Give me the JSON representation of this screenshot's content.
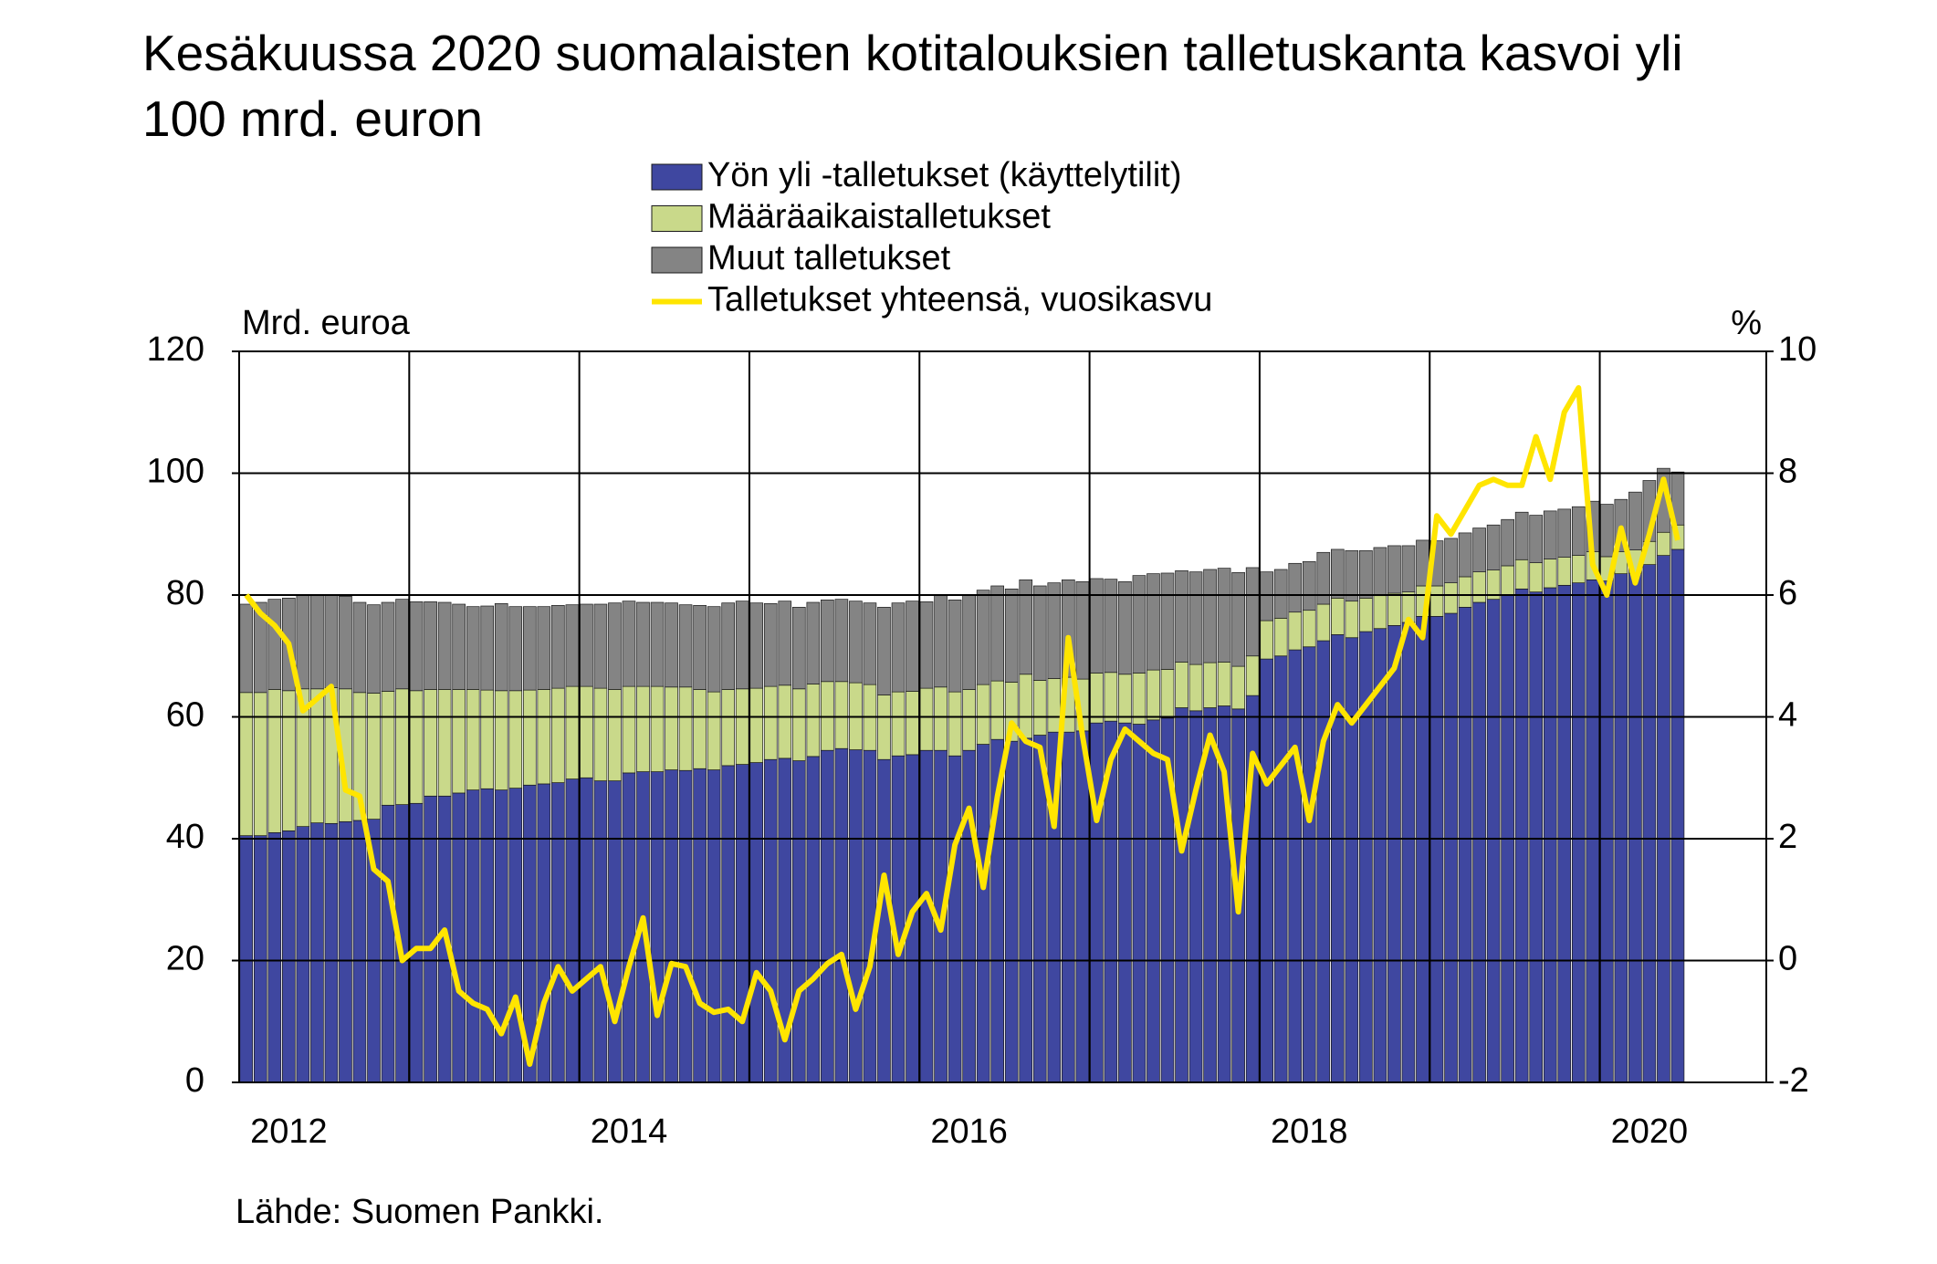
{
  "chart_data": {
    "type": "stacked-bar-line",
    "title": "Kesäkuussa 2020 suomalaisten kotitalouksien talletuskanta kasvoi yli 100 mrd. euron",
    "y_label": "Mrd. euroa",
    "y2_label": "%",
    "source": "Lähde: Suomen Pankki.",
    "categories": [
      null,
      null,
      null,
      "2012",
      null,
      null,
      null,
      null,
      null,
      null,
      null,
      null,
      null,
      null,
      null,
      null,
      null,
      null,
      null,
      null,
      null,
      null,
      null,
      null,
      null,
      null,
      null,
      "2014",
      null,
      null,
      null,
      null,
      null,
      null,
      null,
      null,
      null,
      null,
      null,
      null,
      null,
      null,
      null,
      null,
      null,
      null,
      null,
      null,
      null,
      null,
      null,
      "2016",
      null,
      null,
      null,
      null,
      null,
      null,
      null,
      null,
      null,
      null,
      null,
      null,
      null,
      null,
      null,
      null,
      null,
      null,
      null,
      null,
      null,
      null,
      null,
      "2018",
      null,
      null,
      null,
      null,
      null,
      null,
      null,
      null,
      null,
      null,
      null,
      null,
      null,
      null,
      null,
      null,
      null,
      null,
      null,
      null,
      null,
      null,
      null,
      "2020",
      null,
      null
    ],
    "ylim": [
      0,
      120
    ],
    "yticks": [
      0,
      20,
      40,
      60,
      80,
      100,
      120
    ],
    "y2lim": [
      -2,
      10
    ],
    "y2ticks": [
      -2,
      0,
      2,
      4,
      6,
      8,
      10
    ],
    "grid": true,
    "series": [
      {
        "name": "Yön yli -talletukset (käyttelytilit)",
        "color": "#3f47a0",
        "values": [
          40.5,
          40.5,
          41,
          41.3,
          42,
          42.6,
          42.5,
          42.8,
          43,
          43.2,
          45.5,
          45.6,
          45.8,
          47,
          47,
          47.5,
          48,
          48.2,
          48,
          48.3,
          48.8,
          49,
          49.2,
          49.8,
          50,
          49.5,
          49.5,
          50.8,
          51,
          51,
          51.3,
          51.2,
          51.5,
          51.3,
          52,
          52.2,
          52.5,
          53,
          53.2,
          52.8,
          53.5,
          54.5,
          54.8,
          54.6,
          54.5,
          53,
          53.6,
          53.8,
          54.5,
          54.5,
          53.6,
          54.5,
          55.5,
          56.3,
          56,
          56.5,
          57,
          57.5,
          57.5,
          57.7,
          59,
          59.3,
          59,
          58.8,
          59.5,
          59.8,
          61.5,
          61,
          61.5,
          61.8,
          61.3,
          63.5,
          69.5,
          70,
          71,
          71.5,
          72.5,
          73.5,
          73,
          74,
          74.5,
          75,
          75.5,
          76.5,
          76.5,
          77,
          78,
          78.8,
          79.3,
          80,
          81,
          80.5,
          81.2,
          81.6,
          82,
          82.5,
          82.3,
          83.5,
          83.6,
          85,
          86.5,
          87.5
        ]
      },
      {
        "name": "Määräaikaistalletukset",
        "color": "#c9d98a",
        "values": [
          23.5,
          23.5,
          23.5,
          23,
          22.6,
          22,
          22.3,
          21.8,
          21,
          20.7,
          18.7,
          19,
          18.5,
          17.5,
          17.5,
          17,
          16.5,
          16.2,
          16.3,
          16,
          15.6,
          15.5,
          15.5,
          15.2,
          15,
          15.2,
          15,
          14.2,
          14,
          14,
          13.6,
          13.7,
          13,
          12.8,
          12.5,
          12.4,
          12.2,
          12,
          12,
          11.8,
          11.9,
          11.3,
          11,
          11,
          10.8,
          10.6,
          10.5,
          10.4,
          10.2,
          10.4,
          10.5,
          10,
          9.8,
          9.6,
          9.7,
          10.5,
          9,
          8.8,
          9,
          8.5,
          8.2,
          8,
          8,
          8.4,
          8.2,
          8,
          7.5,
          7.6,
          7.4,
          7.2,
          7,
          6.5,
          6.3,
          6.2,
          6.2,
          6,
          6,
          6,
          6,
          5.5,
          5.4,
          5.3,
          5,
          5,
          5,
          5,
          5,
          5,
          4.8,
          4.8,
          4.8,
          4.8,
          4.7,
          4.6,
          4.5,
          4.6,
          4,
          3.6,
          3.8,
          3.8,
          3.8,
          4
        ]
      },
      {
        "name": "Muut talletukset",
        "color": "#848484",
        "values": [
          14.5,
          14.8,
          14.8,
          15.2,
          15.5,
          15.3,
          15.2,
          15.2,
          14.8,
          14.5,
          14.6,
          14.7,
          14.6,
          14.4,
          14.3,
          14,
          13.6,
          13.8,
          14.3,
          13.8,
          13.7,
          13.6,
          13.6,
          13.4,
          13.5,
          13.8,
          14.2,
          14,
          13.8,
          13.8,
          13.8,
          13.5,
          13.8,
          14,
          14.2,
          14.4,
          14,
          13.6,
          13.8,
          13.4,
          13.4,
          13.4,
          13.5,
          13.4,
          13.4,
          14.4,
          14.6,
          14.8,
          14.2,
          15,
          15.1,
          15.5,
          15.5,
          15.6,
          15.3,
          15.5,
          15.5,
          15.7,
          16,
          16,
          15.5,
          15.3,
          15.2,
          16,
          15.8,
          15.8,
          15,
          15.2,
          15.3,
          15.4,
          15.4,
          14.5,
          8,
          8,
          8,
          8,
          8.5,
          8,
          8.3,
          7.8,
          7.9,
          7.8,
          7.6,
          7.5,
          7.4,
          7.3,
          7.2,
          7.2,
          7.4,
          7.6,
          7.8,
          7.8,
          7.9,
          7.9,
          8,
          8.3,
          8.6,
          8.6,
          9.5,
          10,
          10.5,
          8.7
        ]
      },
      {
        "name": "Talletukset yhteensä, vuosikasvu",
        "color": "#ffe500",
        "axis": "y2",
        "values": [
          6.0,
          5.7,
          5.5,
          5.2,
          4.1,
          4.3,
          4.5,
          2.8,
          2.7,
          1.5,
          1.3,
          0.0,
          0.2,
          0.2,
          0.5,
          -0.5,
          -0.7,
          -0.8,
          -1.2,
          -0.6,
          -1.7,
          -0.7,
          -0.1,
          -0.5,
          -0.3,
          -0.1,
          -1.0,
          -0.1,
          0.7,
          -0.9,
          -0.05,
          -0.1,
          -0.7,
          -0.85,
          -0.8,
          -1.0,
          -0.2,
          -0.5,
          -1.3,
          -0.5,
          -0.3,
          -0.05,
          0.1,
          -0.8,
          -0.1,
          1.4,
          0.1,
          0.8,
          1.1,
          0.5,
          1.9,
          2.5,
          1.2,
          2.7,
          3.9,
          3.6,
          3.5,
          2.2,
          5.3,
          3.7,
          2.3,
          3.3,
          3.8,
          3.6,
          3.4,
          3.3,
          1.8,
          2.8,
          3.7,
          3.1,
          0.8,
          3.4,
          2.9,
          3.2,
          3.5,
          2.3,
          3.6,
          4.2,
          3.9,
          4.2,
          4.5,
          4.8,
          5.6,
          5.3,
          7.3,
          7.0,
          7.4,
          7.8,
          7.9,
          7.8,
          7.8,
          8.6,
          7.9,
          9.0,
          9.4,
          6.5,
          6.0,
          7.1,
          6.2,
          7.0,
          7.9,
          6.9
        ]
      }
    ]
  }
}
